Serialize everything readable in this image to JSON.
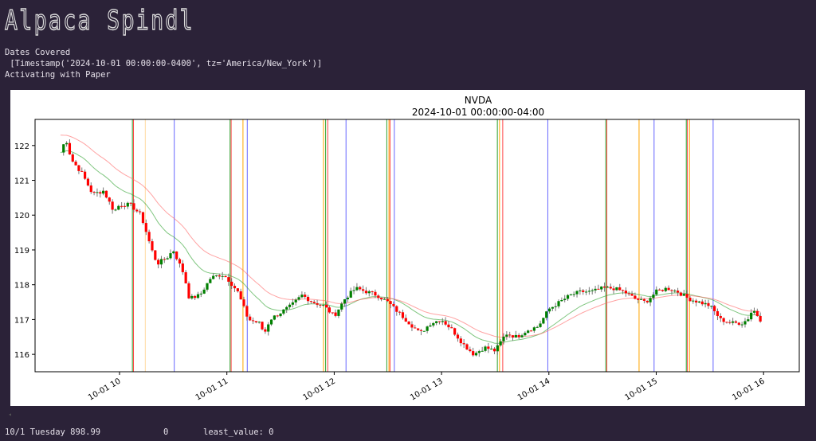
{
  "app_title": "Alpaca Spindl",
  "console": {
    "line1": "Dates Covered",
    "line2": " [Timestamp('2024-10-01 00:00:00-0400', tz='America/New_York')]",
    "line3": "Activating with Paper"
  },
  "status": {
    "day": "10/1 Tuesday 898.99",
    "count": "0",
    "least": "least_value: 0"
  },
  "colors": {
    "up": "#008000",
    "down": "#ff0000",
    "bg": "#2b2238"
  },
  "chart_data": {
    "type": "candlestick",
    "title": "NVDA",
    "subtitle": "2024-10-01 00:00:00-04:00",
    "ylim": [
      115.5,
      122.75
    ],
    "xlim_hours": [
      9.2,
      16.35
    ],
    "yticks": [
      116,
      117,
      118,
      119,
      120,
      121,
      122
    ],
    "xticks": [
      {
        "h": 10,
        "label": "10-01 10"
      },
      {
        "h": 11,
        "label": "10-01 11"
      },
      {
        "h": 12,
        "label": "10-01 12"
      },
      {
        "h": 13,
        "label": "10-01 13"
      },
      {
        "h": 14,
        "label": "10-01 14"
      },
      {
        "h": 15,
        "label": "10-01 15"
      },
      {
        "h": 16,
        "label": "10-01 16"
      }
    ],
    "close_keypoints": [
      [
        9.45,
        121.8
      ],
      [
        9.5,
        122.2
      ],
      [
        9.55,
        121.6
      ],
      [
        9.65,
        121.2
      ],
      [
        9.75,
        120.6
      ],
      [
        9.85,
        120.7
      ],
      [
        9.95,
        120.1
      ],
      [
        10.0,
        120.3
      ],
      [
        10.1,
        120.3
      ],
      [
        10.2,
        120.0
      ],
      [
        10.3,
        119.0
      ],
      [
        10.35,
        118.6
      ],
      [
        10.45,
        118.8
      ],
      [
        10.5,
        119.0
      ],
      [
        10.6,
        118.3
      ],
      [
        10.65,
        117.6
      ],
      [
        10.75,
        117.7
      ],
      [
        10.85,
        118.2
      ],
      [
        10.95,
        118.3
      ],
      [
        11.0,
        118.2
      ],
      [
        11.1,
        117.8
      ],
      [
        11.2,
        117.0
      ],
      [
        11.3,
        116.9
      ],
      [
        11.35,
        116.6
      ],
      [
        11.4,
        117.0
      ],
      [
        11.5,
        117.2
      ],
      [
        11.6,
        117.4
      ],
      [
        11.7,
        117.7
      ],
      [
        11.8,
        117.5
      ],
      [
        11.9,
        117.4
      ],
      [
        12.0,
        117.1
      ],
      [
        12.1,
        117.6
      ],
      [
        12.2,
        117.9
      ],
      [
        12.3,
        117.8
      ],
      [
        12.4,
        117.7
      ],
      [
        12.5,
        117.5
      ],
      [
        12.6,
        117.2
      ],
      [
        12.7,
        116.9
      ],
      [
        12.8,
        116.6
      ],
      [
        12.9,
        116.9
      ],
      [
        13.0,
        117.0
      ],
      [
        13.1,
        116.7
      ],
      [
        13.2,
        116.3
      ],
      [
        13.3,
        116.0
      ],
      [
        13.4,
        116.2
      ],
      [
        13.5,
        116.1
      ],
      [
        13.6,
        116.6
      ],
      [
        13.7,
        116.5
      ],
      [
        13.8,
        116.7
      ],
      [
        13.9,
        116.8
      ],
      [
        14.0,
        117.3
      ],
      [
        14.1,
        117.5
      ],
      [
        14.2,
        117.7
      ],
      [
        14.3,
        117.8
      ],
      [
        14.4,
        117.8
      ],
      [
        14.5,
        117.9
      ],
      [
        14.6,
        117.9
      ],
      [
        14.7,
        117.8
      ],
      [
        14.8,
        117.6
      ],
      [
        14.9,
        117.5
      ],
      [
        15.0,
        117.8
      ],
      [
        15.1,
        117.9
      ],
      [
        15.2,
        117.8
      ],
      [
        15.3,
        117.6
      ],
      [
        15.4,
        117.5
      ],
      [
        15.5,
        117.4
      ],
      [
        15.6,
        117.0
      ],
      [
        15.7,
        116.9
      ],
      [
        15.8,
        116.9
      ],
      [
        15.85,
        117.0
      ],
      [
        15.9,
        117.3
      ],
      [
        15.97,
        117.0
      ]
    ],
    "vlines": [
      [
        10.12,
        "#2ca02c"
      ],
      [
        10.13,
        "#ff4444"
      ],
      [
        10.24,
        "#ffd9a0"
      ],
      [
        10.51,
        "#6666ff"
      ],
      [
        11.03,
        "#2ca02c"
      ],
      [
        11.04,
        "#ff4444"
      ],
      [
        11.15,
        "#ffa500"
      ],
      [
        11.19,
        "#6666ff"
      ],
      [
        11.9,
        "#ffa500"
      ],
      [
        11.92,
        "#2ca02c"
      ],
      [
        11.94,
        "#ff4444"
      ],
      [
        12.11,
        "#6666ff"
      ],
      [
        12.49,
        "#2ca02c"
      ],
      [
        12.51,
        "#ffa500"
      ],
      [
        12.52,
        "#ff4444"
      ],
      [
        12.56,
        "#6666ff"
      ],
      [
        13.52,
        "#2ca02c"
      ],
      [
        13.54,
        "#ffa500"
      ],
      [
        13.57,
        "#ff4444"
      ],
      [
        13.99,
        "#6666ff"
      ],
      [
        14.53,
        "#2ca02c"
      ],
      [
        14.54,
        "#ff4444"
      ],
      [
        14.84,
        "#ffa500"
      ],
      [
        14.98,
        "#6666ff"
      ],
      [
        15.28,
        "#2ca02c"
      ],
      [
        15.29,
        "#ff4444"
      ],
      [
        15.31,
        "#ffa500"
      ],
      [
        15.53,
        "#6666ff"
      ]
    ]
  }
}
